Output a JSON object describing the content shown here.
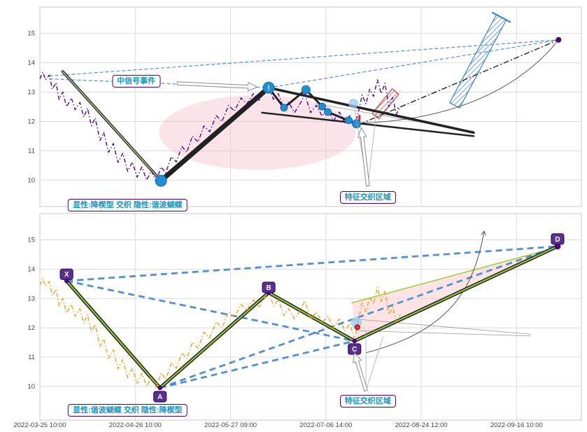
{
  "window_title": "pattern-interweave-chart",
  "colors": {
    "background": "#ffffff",
    "grid": "#dcdcdc",
    "panel_border": "#c9c9c9",
    "price_top": "#4a0a82",
    "price_bottom": "#e8a21c",
    "blue_dashed": "#5090d8",
    "pattern_black": "#222222",
    "pattern_green_top": "#b9c98e",
    "pattern_green_bottom": "#9acd32",
    "dot_blue": "#1f8ed2",
    "dot_blue_edge": "#0f6faa",
    "marker_purple": "#5c2e91",
    "marker_purple_edge": "#31175e",
    "annotation_border": "#4b0082",
    "annotation_text": "#1b93c0",
    "ellipse_pink": "rgba(244,184,196,0.38)",
    "triangle_pink": "rgba(253,205,205,0.55)",
    "channel_blue": "#3b7fd4",
    "channel_red": "#d04040",
    "event_red": "#e03030",
    "bubble_blue": "rgba(150,200,235,0.75)",
    "end_dot": "#4b0082",
    "axis_text": "#444444",
    "thin_gray": "#999999",
    "dashdot_black": "#222222"
  },
  "axes": {
    "x_ticks": [
      0,
      1,
      2,
      3,
      4,
      5
    ],
    "x_tick_labels": [
      "2022-03-25 10:00",
      "2022-04-26 10:00",
      "2022-05-27 09:00",
      "2022-07-06 14:00",
      "2022-08-24 12:00",
      "2022-09-16 10:00"
    ],
    "y_tick_labels": [
      10,
      11,
      12,
      13,
      14,
      15
    ],
    "xlim": [
      0,
      5.68
    ]
  },
  "chart_data": [
    {
      "type": "line",
      "panel": "top",
      "title": "",
      "xlabel": "",
      "ylabel": "",
      "ylim": [
        9.1,
        15.9
      ],
      "grid": true,
      "price": {
        "name": "price-explicit-falling-wedge",
        "color": "#4a0a82",
        "points": [
          [
            0,
            13.45
          ],
          [
            0.03,
            13.68
          ],
          [
            0.06,
            13.42
          ],
          [
            0.1,
            13.58
          ],
          [
            0.13,
            13.1
          ],
          [
            0.17,
            13.32
          ],
          [
            0.2,
            12.75
          ],
          [
            0.24,
            13.0
          ],
          [
            0.28,
            12.5
          ],
          [
            0.33,
            12.8
          ],
          [
            0.37,
            12.4
          ],
          [
            0.42,
            12.65
          ],
          [
            0.46,
            12.15
          ],
          [
            0.5,
            12.45
          ],
          [
            0.54,
            11.85
          ],
          [
            0.58,
            12.12
          ],
          [
            0.63,
            11.35
          ],
          [
            0.67,
            11.62
          ],
          [
            0.72,
            10.95
          ],
          [
            0.77,
            11.25
          ],
          [
            0.82,
            10.6
          ],
          [
            0.87,
            10.92
          ],
          [
            0.92,
            10.3
          ],
          [
            0.97,
            10.62
          ],
          [
            1.02,
            10.1
          ],
          [
            1.07,
            10.45
          ],
          [
            1.12,
            10.0
          ],
          [
            1.17,
            10.32
          ],
          [
            1.22,
            9.95
          ],
          [
            1.27,
            10.45
          ],
          [
            1.32,
            10.25
          ],
          [
            1.38,
            10.8
          ],
          [
            1.43,
            10.62
          ],
          [
            1.49,
            11.15
          ],
          [
            1.54,
            10.95
          ],
          [
            1.6,
            11.5
          ],
          [
            1.66,
            11.3
          ],
          [
            1.72,
            11.85
          ],
          [
            1.78,
            11.65
          ],
          [
            1.85,
            12.2
          ],
          [
            1.91,
            12.0
          ],
          [
            1.98,
            12.55
          ],
          [
            2.04,
            12.35
          ],
          [
            2.11,
            12.8
          ],
          [
            2.17,
            12.6
          ],
          [
            2.24,
            12.95
          ],
          [
            2.3,
            12.72
          ],
          [
            2.36,
            13.02
          ],
          [
            2.4,
            13.15
          ],
          [
            2.45,
            12.75
          ],
          [
            2.5,
            12.95
          ],
          [
            2.56,
            12.42
          ],
          [
            2.61,
            12.65
          ],
          [
            2.67,
            12.3
          ],
          [
            2.72,
            12.55
          ],
          [
            2.78,
            12.92
          ],
          [
            2.84,
            12.3
          ],
          [
            2.9,
            12.55
          ],
          [
            2.96,
            12.18
          ],
          [
            3.02,
            12.45
          ],
          [
            3.08,
            12.02
          ],
          [
            3.14,
            12.32
          ],
          [
            3.2,
            11.95
          ],
          [
            3.25,
            12.2
          ],
          [
            3.3,
            11.88
          ],
          [
            3.34,
            12.3
          ],
          [
            3.38,
            12.9
          ],
          [
            3.42,
            12.6
          ],
          [
            3.46,
            13.1
          ],
          [
            3.5,
            12.85
          ],
          [
            3.54,
            13.42
          ],
          [
            3.58,
            12.95
          ],
          [
            3.62,
            13.3
          ],
          [
            3.66,
            12.5
          ],
          [
            3.7,
            12.82
          ],
          [
            3.74,
            12.25
          ],
          [
            3.78,
            12.52
          ]
        ]
      },
      "overlays": {
        "ellipse": {
          "cx": 2.28,
          "cy": 11.62,
          "rx": 1.03,
          "ry": 1.27
        },
        "double_lines": [
          {
            "pts": [
              [
                0.24,
                13.7
              ],
              [
                1.27,
                9.98
              ]
            ],
            "w": 4,
            "core": 1.5,
            "cc": "#b9c98e"
          }
        ],
        "thick_lines": [
          {
            "pts": [
              [
                1.27,
                9.98
              ],
              [
                2.4,
                13.15
              ]
            ],
            "w": 7
          },
          {
            "pts": [
              [
                2.4,
                13.15
              ],
              [
                2.56,
                12.47
              ],
              [
                2.79,
                13.08
              ],
              [
                3.02,
                12.32
              ],
              [
                3.32,
                11.92
              ]
            ],
            "w": 3
          },
          {
            "pts": [
              [
                2.4,
                13.15
              ],
              [
                4.55,
                11.62
              ]
            ],
            "w": 3.5
          },
          {
            "pts": [
              [
                2.33,
                12.3
              ],
              [
                4.55,
                11.5
              ]
            ],
            "w": 2.5
          }
        ],
        "dashed_lines": [
          [
            0.1,
            13.55,
            5.44,
            14.78
          ],
          [
            0.1,
            13.45,
            2.4,
            13.15
          ],
          [
            2.4,
            13.15,
            5.44,
            14.78
          ]
        ],
        "dashdot_lines": [
          [
            3.35,
            11.9,
            5.44,
            14.78
          ]
        ],
        "thin_lines": [
          [
            2.9,
            12.6,
            4.55,
            11.66
          ]
        ],
        "curves": [
          {
            "pts": [
              [
                3.4,
                11.95
              ],
              [
                4.2,
                12.05
              ],
              [
                4.95,
                12.85
              ],
              [
                5.42,
                14.7
              ]
            ],
            "arrow": false
          }
        ],
        "channels": [
          {
            "x1": 4.35,
            "y1": 12.55,
            "x2": 4.84,
            "y2": 15.55,
            "hw": 8,
            "color": "#3b7fd4",
            "pat": "hb",
            "cap": true
          },
          {
            "x1": 3.52,
            "y1": 12.18,
            "x2": 3.73,
            "y2": 13.02,
            "hw": 6,
            "color": "#d04040",
            "pat": "hr",
            "cap": false
          }
        ],
        "dots": [
          {
            "x": 1.27,
            "y": 9.98,
            "r": 8
          },
          {
            "x": 2.56,
            "y": 12.47,
            "r": 5
          },
          {
            "x": 2.79,
            "y": 13.08,
            "r": 6
          },
          {
            "x": 2.96,
            "y": 12.51,
            "r": 5
          },
          {
            "x": 3.02,
            "y": 12.32,
            "r": 5
          },
          {
            "x": 3.24,
            "y": 12.04,
            "r": 5
          },
          {
            "x": 3.32,
            "y": 11.92,
            "r": 6
          }
        ],
        "exclaim": {
          "x": 2.4,
          "y": 13.15,
          "r": 8,
          "text": "!"
        },
        "bubble": {
          "x": 3.29,
          "y": 12.61,
          "r": 7
        },
        "red_tick": {
          "x": 3.35,
          "v1": 11.8,
          "v2": 12.22
        },
        "end_dot": {
          "x": 5.44,
          "y": 14.78,
          "r": 4
        }
      },
      "labels": [
        {
          "id": "signal-event",
          "text": "中信号事件",
          "cx": 1.01,
          "cy": 13.37,
          "arrow": [
            1.44,
            13.3,
            2.28,
            13.17
          ]
        },
        {
          "id": "pattern-desc-top",
          "text": "显性:降楔型 交织 隐性:谐波蝴蝶",
          "cx": 0.92,
          "cy": 9.15
        },
        {
          "id": "feature-zone-top",
          "text": "特征交织区域",
          "cx": 3.44,
          "cy": 9.42,
          "arrow": [
            3.44,
            9.8,
            3.37,
            11.78
          ],
          "rays": [
            [
              3.44,
              9.8,
              3.3,
              12.42
            ],
            [
              3.44,
              9.8,
              3.53,
              12.32
            ]
          ]
        }
      ]
    },
    {
      "type": "line",
      "panel": "bottom",
      "title": "",
      "xlabel": "",
      "ylabel": "",
      "ylim": [
        8.85,
        15.9
      ],
      "grid": true,
      "price": {
        "name": "price-explicit-harmonic-butterfly",
        "color": "#e8a21c",
        "points": [
          [
            0,
            13.45
          ],
          [
            0.03,
            13.68
          ],
          [
            0.06,
            13.42
          ],
          [
            0.1,
            13.58
          ],
          [
            0.13,
            13.1
          ],
          [
            0.17,
            13.32
          ],
          [
            0.2,
            12.75
          ],
          [
            0.24,
            13.0
          ],
          [
            0.28,
            12.5
          ],
          [
            0.33,
            12.8
          ],
          [
            0.37,
            12.4
          ],
          [
            0.42,
            12.65
          ],
          [
            0.46,
            12.15
          ],
          [
            0.5,
            12.45
          ],
          [
            0.54,
            11.85
          ],
          [
            0.58,
            12.12
          ],
          [
            0.63,
            11.35
          ],
          [
            0.67,
            11.62
          ],
          [
            0.72,
            10.95
          ],
          [
            0.77,
            11.25
          ],
          [
            0.82,
            10.6
          ],
          [
            0.87,
            10.92
          ],
          [
            0.92,
            10.3
          ],
          [
            0.97,
            10.62
          ],
          [
            1.02,
            10.1
          ],
          [
            1.07,
            10.45
          ],
          [
            1.12,
            10.0
          ],
          [
            1.17,
            10.32
          ],
          [
            1.22,
            9.95
          ],
          [
            1.27,
            10.45
          ],
          [
            1.32,
            10.25
          ],
          [
            1.38,
            10.8
          ],
          [
            1.43,
            10.62
          ],
          [
            1.49,
            11.15
          ],
          [
            1.54,
            10.95
          ],
          [
            1.6,
            11.5
          ],
          [
            1.66,
            11.3
          ],
          [
            1.72,
            11.85
          ],
          [
            1.78,
            11.65
          ],
          [
            1.85,
            12.2
          ],
          [
            1.91,
            12.0
          ],
          [
            1.98,
            12.55
          ],
          [
            2.04,
            12.35
          ],
          [
            2.11,
            12.8
          ],
          [
            2.17,
            12.6
          ],
          [
            2.24,
            12.95
          ],
          [
            2.3,
            12.72
          ],
          [
            2.36,
            13.02
          ],
          [
            2.4,
            13.25
          ],
          [
            2.45,
            12.75
          ],
          [
            2.5,
            12.95
          ],
          [
            2.56,
            12.42
          ],
          [
            2.61,
            12.65
          ],
          [
            2.67,
            12.3
          ],
          [
            2.72,
            12.55
          ],
          [
            2.78,
            12.92
          ],
          [
            2.84,
            12.3
          ],
          [
            2.9,
            12.55
          ],
          [
            2.96,
            12.18
          ],
          [
            3.02,
            12.4
          ],
          [
            3.08,
            12.0
          ],
          [
            3.14,
            12.3
          ],
          [
            3.2,
            11.9
          ],
          [
            3.25,
            12.15
          ],
          [
            3.3,
            11.6
          ],
          [
            3.34,
            12.25
          ],
          [
            3.38,
            12.85
          ],
          [
            3.42,
            12.55
          ],
          [
            3.46,
            13.05
          ],
          [
            3.5,
            12.8
          ],
          [
            3.54,
            13.38
          ],
          [
            3.58,
            12.9
          ],
          [
            3.62,
            13.25
          ],
          [
            3.66,
            12.45
          ],
          [
            3.7,
            12.7
          ],
          [
            3.74,
            12.2
          ],
          [
            3.78,
            12.45
          ]
        ]
      },
      "overlays": {
        "triangle": {
          "pts": [
            [
              3.27,
              12.85
            ],
            [
              5.43,
              14.75
            ],
            [
              3.33,
              11.55
            ]
          ]
        },
        "tri_edges": [
          [
            3.27,
            12.85,
            5.43,
            14.75
          ]
        ],
        "double_lines": [
          {
            "pts": [
              [
                0.28,
                13.6
              ],
              [
                1.26,
                9.95
              ],
              [
                2.4,
                13.2
              ],
              [
                3.3,
                11.55
              ],
              [
                5.43,
                14.78
              ]
            ],
            "w": 5,
            "core": 2,
            "cc": "#9acd32"
          }
        ],
        "thick_lines": [],
        "dashed_lines": [
          [
            0.28,
            13.6,
            5.43,
            14.78
          ],
          [
            0.28,
            13.6,
            3.3,
            11.55
          ],
          [
            1.26,
            9.95,
            5.43,
            14.78
          ],
          [
            1.26,
            9.95,
            3.3,
            11.55
          ]
        ],
        "dashdot_lines": [],
        "thin_lines": [
          [
            3.35,
            11.9,
            5.15,
            11.72
          ],
          [
            3.3,
            12.3,
            5.15,
            11.78
          ]
        ],
        "curves": [
          {
            "pts": [
              [
                3.42,
                11.15
              ],
              [
                4.3,
                11.9
              ],
              [
                4.55,
                13.3
              ],
              [
                4.66,
                15.3
              ]
            ],
            "arrow": true
          }
        ],
        "channels": [],
        "dots": [],
        "bubble": {
          "x": 3.32,
          "y": 12.18,
          "r": 8
        },
        "red_dot": {
          "x": 3.33,
          "y": 12.02,
          "r": 3.5
        },
        "end_dot": {
          "x": 5.43,
          "y": 14.78,
          "r": 4.5
        }
      },
      "xabcd": [
        {
          "label": "X",
          "x": 0.28,
          "y": 13.6,
          "dy": -9
        },
        {
          "label": "A",
          "x": 1.26,
          "y": 9.95,
          "dy": 13
        },
        {
          "label": "B",
          "x": 2.4,
          "y": 13.2,
          "dy": -7
        },
        {
          "label": "C",
          "x": 3.3,
          "y": 11.55,
          "dy": 12
        },
        {
          "label": "D",
          "x": 5.43,
          "y": 14.78,
          "dy": -10
        }
      ],
      "labels": [
        {
          "id": "pattern-desc-bottom",
          "text": "显性:谐波蝴蝶 交织 隐性:降楔型",
          "cx": 0.92,
          "cy": 9.18
        },
        {
          "id": "feature-zone-bottom",
          "text": "特征交织区域",
          "cx": 3.44,
          "cy": 9.5,
          "arrow": [
            3.42,
            9.85,
            3.3,
            11.15
          ],
          "rays": [
            [
              3.42,
              9.85,
              3.42,
              11.9
            ],
            [
              3.42,
              9.85,
              3.6,
              11.7
            ]
          ]
        }
      ]
    }
  ]
}
